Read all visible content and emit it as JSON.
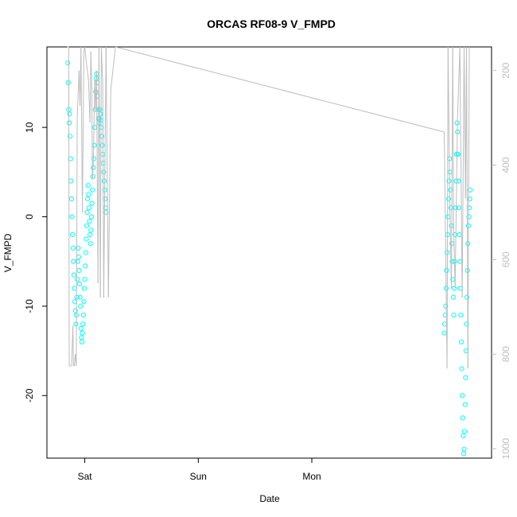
{
  "chart_data": {
    "type": "scatter",
    "title": "ORCAS RF08-9 V_FMPD",
    "xlabel": "Date",
    "ylabel": "V_FMPD",
    "x_ticks": [
      "Sat",
      "Sun",
      "Mon"
    ],
    "y_ticks_left": [
      "-20",
      "-10",
      "0",
      "10"
    ],
    "y_ticks_right": [
      "200",
      "400",
      "600",
      "800",
      "1000"
    ],
    "colors": {
      "points": "#00ffff",
      "pressure_line": "#bdbdbd",
      "axes": "#000000"
    },
    "series": [
      {
        "axis": "left",
        "style": "open-circle points",
        "x_hours_from_sat": [
          -3.6,
          -3.5,
          -3.4,
          -3.3,
          -3.2,
          -3.1,
          -3.0,
          -2.9,
          -2.8,
          -2.7,
          -2.6,
          -2.5,
          -2.4,
          -2.3,
          -2.2,
          -2.1,
          -2.0,
          -1.9,
          -1.8,
          -1.7,
          -1.6,
          -1.5,
          -1.4,
          -1.3,
          -1.2,
          -1.1,
          -1.0,
          -0.9,
          -0.8,
          -0.7,
          -0.6,
          -0.5,
          -0.4,
          -0.3,
          -0.2,
          -0.1,
          0.0,
          0.1,
          0.2,
          0.3,
          0.4,
          0.5,
          0.6,
          0.7,
          0.8,
          0.9,
          1.0,
          1.1,
          1.2,
          1.3,
          1.4,
          1.5,
          1.6,
          1.7,
          1.8,
          1.9,
          2.0,
          2.1,
          2.2,
          2.3,
          2.4,
          2.5,
          2.6,
          2.7,
          2.8,
          2.9,
          3.0,
          3.1,
          3.2,
          3.3,
          3.4,
          3.5,
          3.6,
          3.7,
          3.8,
          3.9,
          4.0,
          4.1,
          4.2,
          4.3,
          4.4,
          4.5
        ],
        "y": [
          17.2,
          15.0,
          12.0,
          10.5,
          11.5,
          9.0,
          6.5,
          4.0,
          2.0,
          0.0,
          -2.0,
          -3.5,
          -5.0,
          -6.5,
          -8.0,
          -9.5,
          -10.5,
          -12.0,
          -11.0,
          -9.0,
          -7.0,
          -5.0,
          -3.5,
          -4.5,
          -6.0,
          -7.5,
          -9.0,
          -10.0,
          -12.5,
          -13.5,
          -14.0,
          -13.0,
          -12.0,
          -11.0,
          -9.5,
          -8.0,
          -7.0,
          -5.5,
          -4.0,
          -2.5,
          -1.0,
          0.5,
          2.0,
          3.5,
          2.5,
          1.0,
          -0.5,
          -2.0,
          -3.0,
          -1.5,
          0.0,
          1.5,
          3.0,
          4.5,
          5.5,
          6.5,
          8.0,
          10.0,
          12.0,
          14.0,
          15.5,
          16.0,
          15.0,
          13.5,
          12.0,
          11.0,
          10.5,
          11.0,
          12.0,
          11.5,
          10.8,
          10.0,
          9.0,
          8.0,
          7.0,
          6.0,
          5.0,
          4.0,
          3.0,
          2.0,
          1.0,
          0.5
        ]
      },
      {
        "axis": "left",
        "style": "open-circle points",
        "x_hours_from_sat": [
          76.0,
          76.1,
          76.2,
          76.3,
          76.4,
          76.5,
          76.6,
          76.7,
          76.8,
          76.9,
          77.0,
          77.1,
          77.2,
          77.3,
          77.4,
          77.5,
          77.6,
          77.7,
          77.8,
          77.9,
          78.0,
          78.1,
          78.2,
          78.3,
          78.4,
          78.5,
          78.6,
          78.7,
          78.8,
          78.9,
          79.0,
          79.1,
          79.2,
          79.3,
          79.4,
          79.5,
          79.6,
          79.7,
          79.8,
          79.9,
          80.0,
          80.1,
          80.2,
          80.3,
          80.4,
          80.5,
          80.6,
          80.7,
          80.8,
          80.9,
          81.0,
          81.1,
          81.2,
          81.3,
          81.4,
          81.5
        ],
        "y": [
          -13.0,
          -12.0,
          -11.0,
          -10.0,
          -8.0,
          -6.0,
          -4.0,
          -2.0,
          0.0,
          2.0,
          4.0,
          6.5,
          5.0,
          3.0,
          1.0,
          -1.0,
          -3.0,
          -5.0,
          -7.0,
          -9.0,
          -11.0,
          -8.0,
          -5.0,
          -2.0,
          1.0,
          4.0,
          7.0,
          10.5,
          9.5,
          7.0,
          4.0,
          1.0,
          -2.0,
          -5.0,
          -8.0,
          -11.0,
          -14.0,
          -17.0,
          -20.0,
          -22.5,
          -24.5,
          -26.5,
          -26.0,
          -24.0,
          -21.0,
          -18.0,
          -15.0,
          -12.0,
          -9.0,
          -6.0,
          -3.0,
          -1.0,
          0.0,
          1.0,
          2.0,
          3.0
        ]
      },
      {
        "axis": "right",
        "style": "line",
        "x_hours_from_sat": [
          -3.7,
          -3.4,
          -3.3,
          -2.8,
          -2.5,
          -2.4,
          -2.2,
          -2.0,
          -1.8,
          -1.6,
          -1.2,
          -1.0,
          -0.8,
          -0.5,
          -0.2,
          0.0,
          0.3,
          0.8,
          1.1,
          1.3,
          1.5,
          1.6,
          1.8,
          2.1,
          2.3,
          2.5,
          2.8,
          3.0,
          3.3,
          3.5,
          3.8,
          4.0,
          4.5,
          5.0,
          5.5,
          6.5,
          76.0,
          76.6,
          76.8,
          77.2,
          77.5,
          77.8,
          78.0,
          78.3,
          78.8,
          79.3,
          79.8,
          80.2,
          80.5,
          80.7,
          81.0,
          81.3
        ],
        "y": [
          150,
          150,
          825,
          825,
          740,
          825,
          825,
          800,
          825,
          300,
          200,
          275,
          150,
          500,
          160,
          150,
          180,
          220,
          310,
          160,
          240,
          430,
          400,
          220,
          280,
          200,
          650,
          150,
          680,
          150,
          230,
          680,
          150,
          680,
          240,
          150,
          330,
          830,
          150,
          500,
          660,
          150,
          540,
          660,
          300,
          150,
          680,
          150,
          470,
          150,
          830,
          150
        ]
      }
    ],
    "left_axis_range": [
      -27,
      19
    ],
    "right_axis_range": [
      1020,
      150
    ],
    "x_range_hours_from_sat": [
      -8.0,
      86.0
    ],
    "grid": false,
    "legend": "none"
  }
}
